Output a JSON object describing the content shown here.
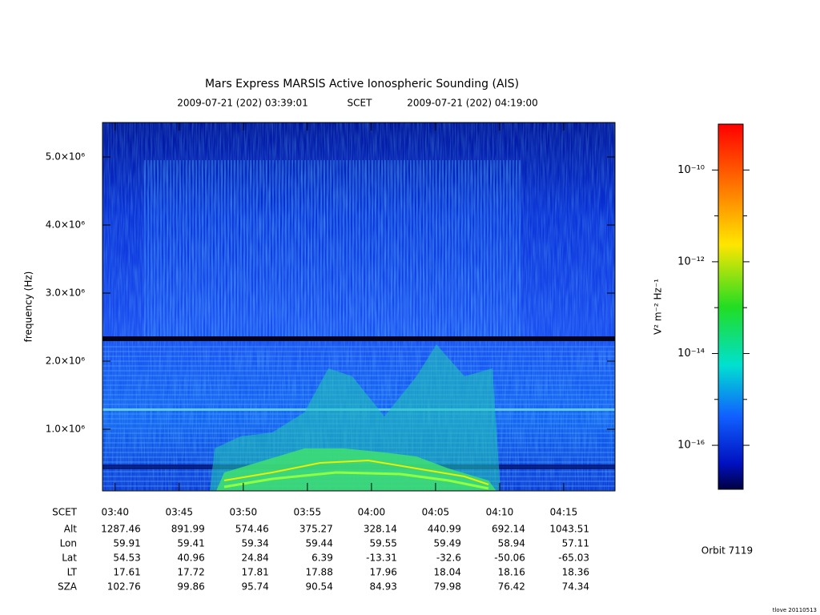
{
  "chart_data": {
    "type": "spectrogram",
    "title": "Mars Express MARSIS Active Ionospheric Sounding (AIS)",
    "x_start": "2009-07-21 (202) 03:39:01",
    "x_axis_name": "SCET",
    "x_end": "2009-07-21 (202) 04:19:00",
    "xticks": [
      "03:40",
      "03:45",
      "03:50",
      "03:55",
      "04:00",
      "04:05",
      "04:10",
      "04:15"
    ],
    "ylabel": "frequency (Hz)",
    "ylim": [
      94000,
      5506000
    ],
    "yticks": [
      {
        "value": 1000000,
        "label": "1.0×10⁶"
      },
      {
        "value": 2000000,
        "label": "2.0×10⁶"
      },
      {
        "value": 3000000,
        "label": "3.0×10⁶"
      },
      {
        "value": 4000000,
        "label": "4.0×10⁶"
      },
      {
        "value": 5000000,
        "label": "5.0×10⁶"
      }
    ],
    "colorbar": {
      "label": "V² m⁻² Hz⁻¹",
      "log": true,
      "zlim": [
        1.1e-17,
        1e-09
      ],
      "zticks": [
        {
          "value": 1e-10,
          "label": "10⁻¹⁰"
        },
        {
          "value": 1e-12,
          "label": "10⁻¹²"
        },
        {
          "value": 1e-14,
          "label": "10⁻¹⁴"
        },
        {
          "value": 1e-16,
          "label": "10⁻¹⁶"
        }
      ],
      "zminor": [
        1e-11,
        1e-13,
        1e-15
      ]
    },
    "ephemeris": [
      {
        "label": "Alt",
        "values": [
          1287.46,
          891.99,
          574.46,
          375.27,
          328.14,
          440.99,
          692.14,
          1043.51
        ]
      },
      {
        "label": "Lon",
        "values": [
          59.91,
          59.41,
          59.34,
          59.44,
          59.55,
          59.49,
          58.94,
          57.11
        ]
      },
      {
        "label": "Lat",
        "values": [
          54.53,
          40.96,
          24.84,
          6.39,
          -13.31,
          -32.6,
          -50.06,
          -65.03
        ]
      },
      {
        "label": "LT",
        "values": [
          17.61,
          17.72,
          17.81,
          17.88,
          17.96,
          18.04,
          18.16,
          18.36
        ]
      },
      {
        "label": "SZA",
        "values": [
          102.76,
          99.86,
          95.74,
          90.54,
          84.93,
          79.98,
          76.42,
          74.34
        ]
      }
    ],
    "orbit": "Orbit 7119",
    "credit": "tlove 20110513"
  }
}
